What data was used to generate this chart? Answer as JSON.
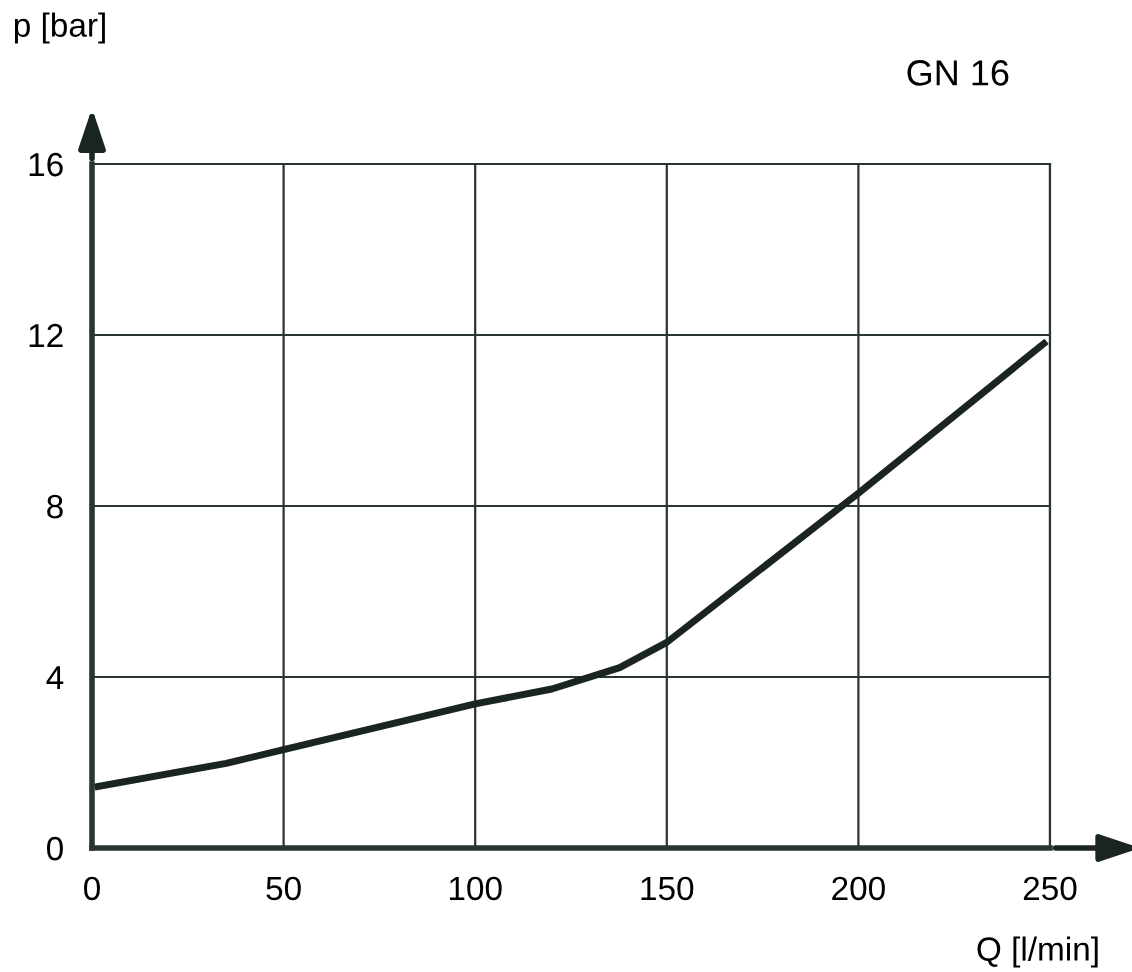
{
  "chart_data": {
    "type": "line",
    "title": "GN 16",
    "xlabel": "Q [l/min]",
    "ylabel": "p [bar]",
    "x": [
      1.6,
      35,
      50,
      85,
      100,
      120,
      137.7,
      150,
      200,
      248.4
    ],
    "series": [
      {
        "color": "#1a2420",
        "values": [
          1.44,
          1.98,
          2.3,
          3.05,
          3.37,
          3.72,
          4.22,
          4.81,
          8.3,
          11.8
        ]
      }
    ],
    "xlim": [
      0,
      250
    ],
    "ylim": [
      0,
      16
    ],
    "xticks": [
      0,
      50,
      100,
      150,
      200,
      250
    ],
    "yticks": [
      0,
      4,
      8,
      12,
      16
    ],
    "grid": true,
    "legend": false,
    "marker": "none",
    "line_style": "solid"
  }
}
